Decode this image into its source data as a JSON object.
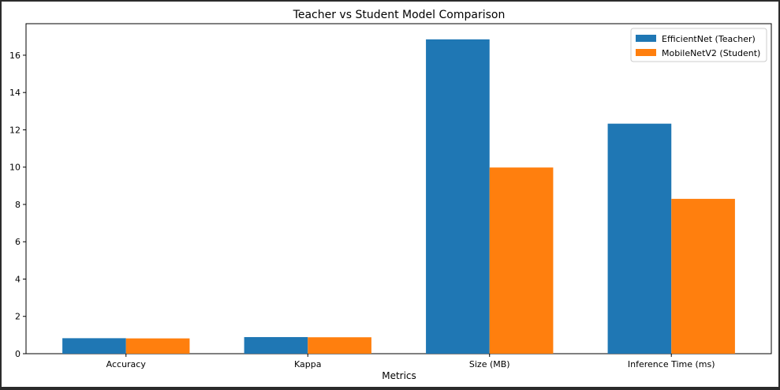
{
  "chart_data": {
    "type": "bar",
    "title": "Teacher vs Student Model Comparison",
    "xlabel": "Metrics",
    "ylabel": "",
    "categories": [
      "Accuracy",
      "Kappa",
      "Size (MB)",
      "Inference Time (ms)"
    ],
    "series": [
      {
        "name": "EfficientNet (Teacher)",
        "color": "#1f77b4",
        "values": [
          0.83,
          0.89,
          16.85,
          12.33
        ]
      },
      {
        "name": "MobileNetV2 (Student)",
        "color": "#ff7f0e",
        "values": [
          0.82,
          0.88,
          9.98,
          8.3
        ]
      }
    ],
    "ylim": [
      0,
      17.69
    ],
    "yticks": [
      0,
      2,
      4,
      6,
      8,
      10,
      12,
      14,
      16
    ],
    "grid": false,
    "legend_position": "top-right"
  }
}
